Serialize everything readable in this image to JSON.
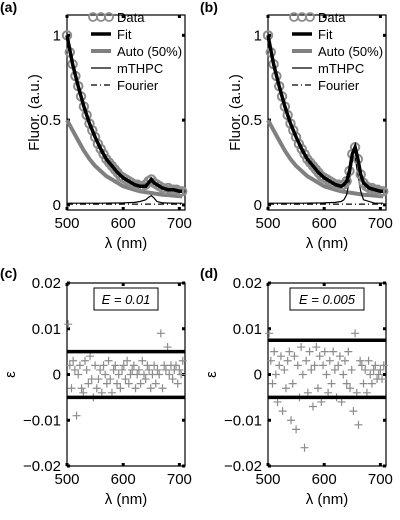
{
  "chart_data": [
    {
      "type": "line",
      "panel_label": "(a)",
      "xlabel": "λ (nm)",
      "ylabel": "Fluor. (a.u.)",
      "xlim": [
        500,
        710
      ],
      "ylim": [
        -0.03,
        1.12
      ],
      "xticks": [
        500,
        600,
        700
      ],
      "xtick_labels": [
        "500",
        "600",
        "700"
      ],
      "yticks": [
        0,
        0.5,
        1
      ],
      "ytick_labels": [
        "0",
        "0.5",
        "1"
      ],
      "grid": false,
      "legend": "top-right",
      "series": [
        {
          "name": "Data",
          "style": "circles",
          "color": "#8c8c8c",
          "x": [
            500,
            505,
            510,
            515,
            520,
            525,
            530,
            535,
            540,
            545,
            550,
            555,
            560,
            565,
            570,
            575,
            580,
            585,
            590,
            595,
            600,
            605,
            610,
            615,
            620,
            625,
            630,
            635,
            640,
            645,
            650,
            655,
            660,
            665,
            670,
            675,
            680,
            685,
            690,
            695,
            700,
            705
          ],
          "y": [
            1.0,
            0.9,
            0.83,
            0.76,
            0.7,
            0.64,
            0.58,
            0.53,
            0.48,
            0.44,
            0.4,
            0.36,
            0.33,
            0.3,
            0.27,
            0.25,
            0.23,
            0.21,
            0.19,
            0.17,
            0.16,
            0.15,
            0.14,
            0.13,
            0.12,
            0.12,
            0.11,
            0.11,
            0.12,
            0.14,
            0.15,
            0.13,
            0.12,
            0.11,
            0.1,
            0.09,
            0.1,
            0.09,
            0.09,
            0.09,
            0.08,
            0.08
          ]
        },
        {
          "name": "Fit",
          "style": "thick",
          "color": "#000000",
          "x": [
            500,
            510,
            520,
            530,
            540,
            550,
            560,
            570,
            580,
            590,
            600,
            610,
            620,
            630,
            640,
            645,
            650,
            655,
            660,
            670,
            680,
            690,
            700,
            705
          ],
          "y": [
            1.0,
            0.83,
            0.7,
            0.58,
            0.48,
            0.4,
            0.33,
            0.27,
            0.23,
            0.19,
            0.16,
            0.14,
            0.12,
            0.11,
            0.11,
            0.13,
            0.15,
            0.13,
            0.12,
            0.1,
            0.09,
            0.09,
            0.08,
            0.08
          ]
        },
        {
          "name": "Auto (50%)",
          "style": "gray-thick",
          "color": "#808080",
          "x": [
            500,
            510,
            520,
            530,
            540,
            550,
            560,
            570,
            580,
            590,
            600,
            610,
            620,
            630,
            640,
            650,
            660,
            670,
            680,
            690,
            700,
            705
          ],
          "y": [
            0.5,
            0.44,
            0.38,
            0.32,
            0.27,
            0.23,
            0.2,
            0.17,
            0.15,
            0.13,
            0.11,
            0.1,
            0.09,
            0.08,
            0.075,
            0.07,
            0.065,
            0.06,
            0.058,
            0.055,
            0.052,
            0.05
          ]
        },
        {
          "name": "mTHPC",
          "style": "thin",
          "color": "#000000",
          "x": [
            500,
            560,
            600,
            620,
            630,
            640,
            645,
            650,
            655,
            660,
            670,
            690,
            705
          ],
          "y": [
            0.01,
            0.01,
            0.012,
            0.015,
            0.02,
            0.03,
            0.045,
            0.055,
            0.04,
            0.02,
            0.012,
            0.01,
            0.01
          ]
        },
        {
          "name": "Fourier",
          "style": "dashdot",
          "color": "#000000",
          "x": [
            500,
            560,
            620,
            680,
            705
          ],
          "y": [
            0.005,
            0.005,
            0.005,
            0.005,
            0.005
          ]
        }
      ]
    },
    {
      "type": "line",
      "panel_label": "(b)",
      "xlabel": "λ (nm)",
      "ylabel": "Fluor. (a.u.)",
      "xlim": [
        500,
        710
      ],
      "ylim": [
        -0.03,
        1.12
      ],
      "xticks": [
        500,
        600,
        700
      ],
      "xtick_labels": [
        "500",
        "600",
        "700"
      ],
      "yticks": [
        0,
        0.5,
        1
      ],
      "ytick_labels": [
        "0",
        "0.5",
        "1"
      ],
      "grid": false,
      "legend": "top-right",
      "series": [
        {
          "name": "Data",
          "style": "circles",
          "color": "#8c8c8c",
          "x": [
            500,
            505,
            510,
            515,
            520,
            525,
            530,
            535,
            540,
            545,
            550,
            555,
            560,
            565,
            570,
            575,
            580,
            585,
            590,
            595,
            600,
            605,
            610,
            615,
            620,
            625,
            630,
            635,
            640,
            645,
            650,
            655,
            660,
            665,
            670,
            675,
            680,
            685,
            690,
            695,
            700,
            705
          ],
          "y": [
            1.0,
            0.9,
            0.83,
            0.76,
            0.7,
            0.64,
            0.58,
            0.53,
            0.48,
            0.44,
            0.4,
            0.36,
            0.33,
            0.3,
            0.27,
            0.25,
            0.23,
            0.21,
            0.19,
            0.17,
            0.16,
            0.15,
            0.14,
            0.13,
            0.12,
            0.12,
            0.11,
            0.12,
            0.14,
            0.2,
            0.3,
            0.34,
            0.27,
            0.18,
            0.13,
            0.11,
            0.1,
            0.1,
            0.09,
            0.09,
            0.08,
            0.08
          ]
        },
        {
          "name": "Fit",
          "style": "thick",
          "color": "#000000",
          "x": [
            500,
            510,
            520,
            530,
            540,
            550,
            560,
            570,
            580,
            590,
            600,
            610,
            620,
            630,
            635,
            640,
            645,
            650,
            655,
            660,
            665,
            670,
            680,
            690,
            700,
            705
          ],
          "y": [
            1.0,
            0.83,
            0.7,
            0.58,
            0.48,
            0.4,
            0.33,
            0.27,
            0.23,
            0.19,
            0.16,
            0.14,
            0.12,
            0.11,
            0.12,
            0.14,
            0.2,
            0.3,
            0.34,
            0.27,
            0.18,
            0.13,
            0.1,
            0.09,
            0.08,
            0.08
          ]
        },
        {
          "name": "Auto (50%)",
          "style": "gray-thick",
          "color": "#808080",
          "x": [
            500,
            510,
            520,
            530,
            540,
            550,
            560,
            570,
            580,
            590,
            600,
            610,
            620,
            630,
            640,
            650,
            660,
            670,
            680,
            690,
            700,
            705
          ],
          "y": [
            0.5,
            0.44,
            0.38,
            0.32,
            0.27,
            0.23,
            0.2,
            0.17,
            0.15,
            0.13,
            0.11,
            0.1,
            0.09,
            0.08,
            0.075,
            0.07,
            0.065,
            0.06,
            0.058,
            0.055,
            0.052,
            0.05
          ]
        },
        {
          "name": "mTHPC",
          "style": "thin",
          "color": "#000000",
          "x": [
            500,
            560,
            600,
            620,
            630,
            635,
            640,
            645,
            650,
            655,
            660,
            665,
            670,
            690,
            705
          ],
          "y": [
            0.01,
            0.01,
            0.012,
            0.015,
            0.02,
            0.03,
            0.06,
            0.15,
            0.26,
            0.28,
            0.18,
            0.08,
            0.03,
            0.01,
            0.01
          ]
        },
        {
          "name": "Fourier",
          "style": "dashdot",
          "color": "#000000",
          "x": [
            500,
            560,
            620,
            680,
            705
          ],
          "y": [
            0.005,
            0.005,
            0.005,
            0.005,
            0.005
          ]
        }
      ]
    },
    {
      "type": "scatter",
      "panel_label": "(c)",
      "xlabel": "λ (nm)",
      "ylabel": "ε",
      "xlim": [
        500,
        710
      ],
      "ylim": [
        -0.02,
        0.02
      ],
      "xticks": [
        500,
        600,
        700
      ],
      "xtick_labels": [
        "500",
        "600",
        "700"
      ],
      "yticks": [
        -0.02,
        -0.01,
        0,
        0.01,
        0.02
      ],
      "ytick_labels": [
        "−0.02",
        "−0.01",
        "0",
        "0.01",
        "0.02"
      ],
      "grid": false,
      "annotation": "E = 0.01",
      "bounds": [
        0.005,
        -0.005
      ],
      "marker": "plus",
      "marker_color": "#8c8c8c",
      "x": [
        502,
        505,
        508,
        511,
        514,
        517,
        520,
        523,
        526,
        529,
        532,
        535,
        538,
        541,
        544,
        547,
        550,
        553,
        556,
        559,
        562,
        565,
        568,
        571,
        574,
        577,
        580,
        583,
        586,
        589,
        592,
        595,
        598,
        601,
        604,
        607,
        610,
        613,
        616,
        619,
        622,
        625,
        628,
        631,
        634,
        637,
        640,
        643,
        646,
        649,
        652,
        655,
        658,
        661,
        664,
        667,
        670,
        673,
        676,
        679,
        682,
        685,
        688,
        691,
        694,
        697,
        700,
        703,
        706
      ],
      "y": [
        0.011,
        0.002,
        -0.003,
        0.003,
        0.001,
        -0.009,
        0.0,
        0.002,
        -0.003,
        -0.004,
        0.003,
        0.001,
        -0.002,
        0.004,
        -0.001,
        -0.005,
        0.002,
        -0.003,
        -0.001,
        0.001,
        -0.004,
        0.002,
        0.0,
        -0.002,
        0.003,
        -0.001,
        -0.004,
        0.001,
        0.002,
        -0.002,
        0.0,
        -0.003,
        0.001,
        0.002,
        -0.001,
        0.003,
        -0.002,
        0.0,
        0.001,
        0.002,
        -0.003,
        0.0,
        0.001,
        -0.002,
        0.003,
        0.0,
        -0.001,
        0.002,
        0.001,
        -0.003,
        0.0,
        0.002,
        -0.002,
        0.001,
        0.0,
        0.009,
        -0.003,
        0.002,
        0.001,
        0.006,
        0.0,
        0.002,
        -0.001,
        0.001,
        0.002,
        -0.002,
        0.001,
        0.0,
        0.003
      ]
    },
    {
      "type": "scatter",
      "panel_label": "(d)",
      "xlabel": "λ (nm)",
      "ylabel": "ε",
      "xlim": [
        500,
        710
      ],
      "ylim": [
        -0.02,
        0.02
      ],
      "xticks": [
        500,
        600,
        700
      ],
      "xtick_labels": [
        "500",
        "600",
        "700"
      ],
      "yticks": [
        -0.02,
        -0.01,
        0,
        0.01,
        0.02
      ],
      "ytick_labels": [
        "−0.02",
        "−0.01",
        "0",
        "0.01",
        "0.02"
      ],
      "grid": false,
      "annotation": "E = 0.005",
      "bounds": [
        0.0075,
        -0.005
      ],
      "marker": "plus",
      "marker_color": "#8c8c8c",
      "x": [
        502,
        505,
        508,
        511,
        514,
        517,
        520,
        523,
        526,
        529,
        532,
        535,
        538,
        541,
        544,
        547,
        550,
        553,
        556,
        559,
        562,
        565,
        568,
        571,
        574,
        577,
        580,
        583,
        586,
        589,
        592,
        595,
        598,
        601,
        604,
        607,
        610,
        613,
        616,
        619,
        622,
        625,
        628,
        631,
        634,
        637,
        640,
        643,
        646,
        649,
        652,
        655,
        658,
        661,
        664,
        667,
        670,
        673,
        676,
        679,
        682,
        685,
        688,
        691,
        694,
        697,
        700,
        703,
        706
      ],
      "y": [
        0.009,
        0.003,
        -0.002,
        0.005,
        0.0,
        -0.006,
        0.002,
        0.004,
        -0.008,
        0.001,
        -0.003,
        0.003,
        0.005,
        -0.01,
        -0.002,
        0.004,
        -0.012,
        0.002,
        -0.005,
        0.006,
        0.0,
        -0.016,
        0.003,
        -0.004,
        0.005,
        0.001,
        -0.007,
        0.002,
        0.006,
        -0.003,
        0.004,
        -0.006,
        0.002,
        0.005,
        0.0,
        -0.004,
        0.003,
        -0.002,
        0.005,
        0.001,
        -0.005,
        0.002,
        0.004,
        -0.006,
        0.0,
        0.003,
        -0.002,
        0.005,
        -0.003,
        0.001,
        -0.008,
        0.009,
        -0.004,
        -0.011,
        0.003,
        0.002,
        -0.002,
        0.001,
        -0.004,
        0.003,
        0.0,
        -0.002,
        0.001,
        0.002,
        -0.001,
        0.0,
        0.001,
        -0.001,
        0.002
      ]
    }
  ]
}
